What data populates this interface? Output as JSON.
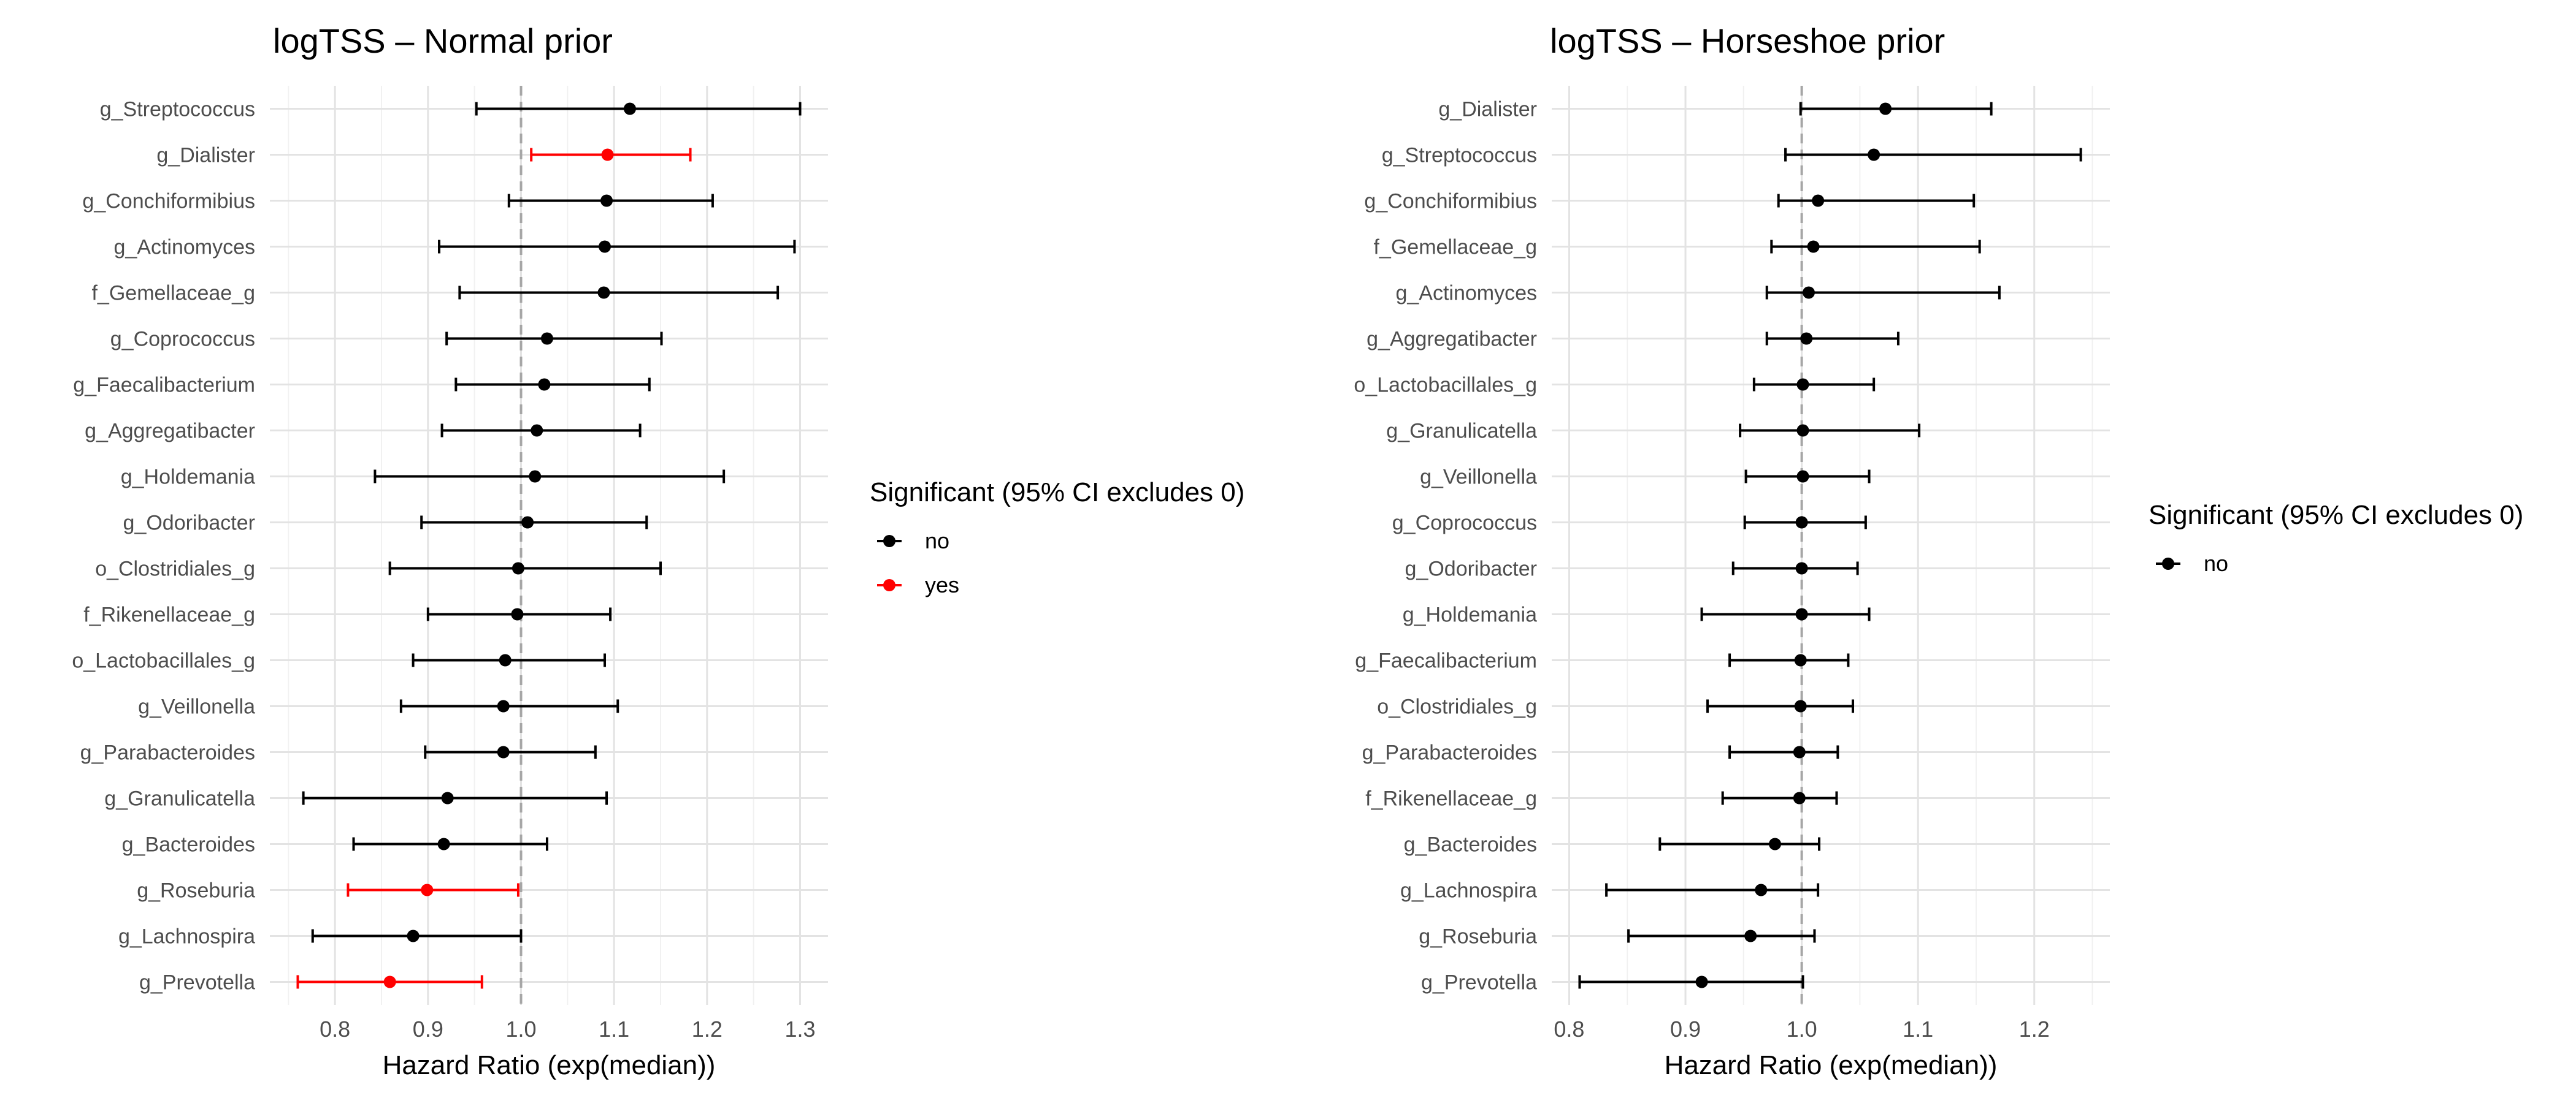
{
  "chart_data": [
    {
      "type": "forest",
      "title": "logTSS – Normal prior",
      "xlabel": "Hazard Ratio (exp(median))",
      "xlim": [
        0.73,
        1.33
      ],
      "xticks": [
        0.8,
        0.9,
        1.0,
        1.1,
        1.2,
        1.3
      ],
      "xtick_labels": [
        "0.8",
        "0.9",
        "1.0",
        "1.1",
        "1.2",
        "1.3"
      ],
      "reference_line": 1.0,
      "grid": true,
      "legend": {
        "title": "Significant (95% CI excludes 0)",
        "placement": "right",
        "items": [
          {
            "key": "no",
            "label": "no",
            "color": "#000000"
          },
          {
            "key": "yes",
            "label": "yes",
            "color": "#ff0000"
          }
        ]
      },
      "rows": [
        {
          "label": "g_Streptococcus",
          "est": 1.117,
          "lo": 0.952,
          "hi": 1.3,
          "sig": "no"
        },
        {
          "label": "g_Dialister",
          "est": 1.093,
          "lo": 1.011,
          "hi": 1.182,
          "sig": "yes"
        },
        {
          "label": "g_Conchiformibius",
          "est": 1.092,
          "lo": 0.987,
          "hi": 1.206,
          "sig": "no"
        },
        {
          "label": "g_Actinomyces",
          "est": 1.09,
          "lo": 0.912,
          "hi": 1.294,
          "sig": "no"
        },
        {
          "label": "f_Gemellaceae_g",
          "est": 1.089,
          "lo": 0.934,
          "hi": 1.276,
          "sig": "no"
        },
        {
          "label": "g_Coprococcus",
          "est": 1.028,
          "lo": 0.92,
          "hi": 1.151,
          "sig": "no"
        },
        {
          "label": "g_Faecalibacterium",
          "est": 1.025,
          "lo": 0.93,
          "hi": 1.138,
          "sig": "no"
        },
        {
          "label": "g_Aggregatibacter",
          "est": 1.017,
          "lo": 0.915,
          "hi": 1.128,
          "sig": "no"
        },
        {
          "label": "g_Holdemania",
          "est": 1.015,
          "lo": 0.843,
          "hi": 1.218,
          "sig": "no"
        },
        {
          "label": "g_Odoribacter",
          "est": 1.007,
          "lo": 0.893,
          "hi": 1.135,
          "sig": "no"
        },
        {
          "label": "o_Clostridiales_g",
          "est": 0.997,
          "lo": 0.859,
          "hi": 1.15,
          "sig": "no"
        },
        {
          "label": "f_Rikenellaceae_g",
          "est": 0.996,
          "lo": 0.9,
          "hi": 1.096,
          "sig": "no"
        },
        {
          "label": "o_Lactobacillales_g",
          "est": 0.983,
          "lo": 0.884,
          "hi": 1.09,
          "sig": "no"
        },
        {
          "label": "g_Veillonella",
          "est": 0.981,
          "lo": 0.871,
          "hi": 1.104,
          "sig": "no"
        },
        {
          "label": "g_Parabacteroides",
          "est": 0.981,
          "lo": 0.897,
          "hi": 1.08,
          "sig": "no"
        },
        {
          "label": "g_Granulicatella",
          "est": 0.921,
          "lo": 0.766,
          "hi": 1.092,
          "sig": "no"
        },
        {
          "label": "g_Bacteroides",
          "est": 0.917,
          "lo": 0.82,
          "hi": 1.028,
          "sig": "no"
        },
        {
          "label": "g_Roseburia",
          "est": 0.899,
          "lo": 0.814,
          "hi": 0.997,
          "sig": "yes"
        },
        {
          "label": "g_Lachnospira",
          "est": 0.884,
          "lo": 0.776,
          "hi": 1.0,
          "sig": "no"
        },
        {
          "label": "g_Prevotella",
          "est": 0.859,
          "lo": 0.76,
          "hi": 0.958,
          "sig": "yes"
        }
      ]
    },
    {
      "type": "forest",
      "title": "logTSS – Horseshoe prior",
      "xlabel": "Hazard Ratio (exp(median))",
      "xlim": [
        0.785,
        1.265
      ],
      "xticks": [
        0.8,
        0.9,
        1.0,
        1.1,
        1.2
      ],
      "xtick_labels": [
        "0.8",
        "0.9",
        "1.0",
        "1.1",
        "1.2"
      ],
      "reference_line": 1.0,
      "grid": true,
      "legend": {
        "title": "Significant (95% CI excludes 0)",
        "placement": "right",
        "items": [
          {
            "key": "no",
            "label": "no",
            "color": "#000000"
          }
        ]
      },
      "rows": [
        {
          "label": "g_Dialister",
          "est": 1.072,
          "lo": 0.999,
          "hi": 1.163,
          "sig": "no"
        },
        {
          "label": "g_Streptococcus",
          "est": 1.062,
          "lo": 0.986,
          "hi": 1.24,
          "sig": "no"
        },
        {
          "label": "g_Conchiformibius",
          "est": 1.014,
          "lo": 0.98,
          "hi": 1.148,
          "sig": "no"
        },
        {
          "label": "f_Gemellaceae_g",
          "est": 1.01,
          "lo": 0.974,
          "hi": 1.153,
          "sig": "no"
        },
        {
          "label": "g_Actinomyces",
          "est": 1.006,
          "lo": 0.97,
          "hi": 1.17,
          "sig": "no"
        },
        {
          "label": "g_Aggregatibacter",
          "est": 1.004,
          "lo": 0.97,
          "hi": 1.083,
          "sig": "no"
        },
        {
          "label": "o_Lactobacillales_g",
          "est": 1.001,
          "lo": 0.959,
          "hi": 1.062,
          "sig": "no"
        },
        {
          "label": "g_Granulicatella",
          "est": 1.001,
          "lo": 0.947,
          "hi": 1.101,
          "sig": "no"
        },
        {
          "label": "g_Veillonella",
          "est": 1.001,
          "lo": 0.952,
          "hi": 1.058,
          "sig": "no"
        },
        {
          "label": "g_Coprococcus",
          "est": 1.0,
          "lo": 0.951,
          "hi": 1.055,
          "sig": "no"
        },
        {
          "label": "g_Odoribacter",
          "est": 1.0,
          "lo": 0.941,
          "hi": 1.048,
          "sig": "no"
        },
        {
          "label": "g_Holdemania",
          "est": 1.0,
          "lo": 0.914,
          "hi": 1.058,
          "sig": "no"
        },
        {
          "label": "g_Faecalibacterium",
          "est": 0.999,
          "lo": 0.938,
          "hi": 1.04,
          "sig": "no"
        },
        {
          "label": "o_Clostridiales_g",
          "est": 0.999,
          "lo": 0.919,
          "hi": 1.044,
          "sig": "no"
        },
        {
          "label": "g_Parabacteroides",
          "est": 0.998,
          "lo": 0.938,
          "hi": 1.031,
          "sig": "no"
        },
        {
          "label": "f_Rikenellaceae_g",
          "est": 0.998,
          "lo": 0.932,
          "hi": 1.03,
          "sig": "no"
        },
        {
          "label": "g_Bacteroides",
          "est": 0.977,
          "lo": 0.878,
          "hi": 1.015,
          "sig": "no"
        },
        {
          "label": "g_Lachnospira",
          "est": 0.965,
          "lo": 0.832,
          "hi": 1.014,
          "sig": "no"
        },
        {
          "label": "g_Roseburia",
          "est": 0.956,
          "lo": 0.851,
          "hi": 1.011,
          "sig": "no"
        },
        {
          "label": "g_Prevotella",
          "est": 0.914,
          "lo": 0.809,
          "hi": 1.001,
          "sig": "no"
        }
      ]
    }
  ]
}
